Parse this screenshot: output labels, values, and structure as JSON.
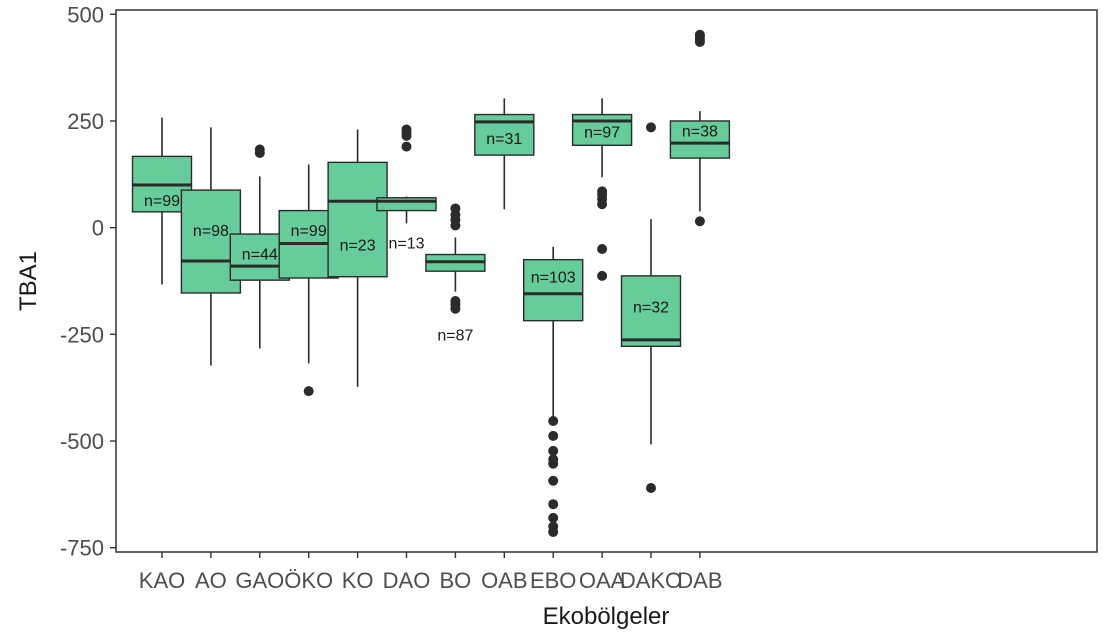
{
  "chart_data": {
    "type": "boxplot",
    "title": "",
    "xlabel": "Ekobölgeler",
    "ylabel": "TBA1",
    "ylim": [
      -760,
      510
    ],
    "yticks": [
      500,
      250,
      0,
      -250,
      -500,
      -750
    ],
    "ytick_labels": [
      "500",
      "250",
      "0",
      "-250",
      "-500",
      "-750"
    ],
    "grid": false,
    "legend": "none",
    "box_color": "#66cc99",
    "line_color": "#2b2b2b",
    "categories": [
      "KAO",
      "AO",
      "GAO",
      "ÖKO",
      "KO",
      "DAO",
      "BO",
      "OAB",
      "EBO",
      "OAA",
      "DAKO",
      "DAB"
    ],
    "boxes": [
      {
        "q1": 37,
        "median": 100,
        "q3": 167,
        "whisker_low": -133,
        "whisker_high": 258,
        "outliers": [],
        "n_label": "n=99",
        "n_label_y": 65
      },
      {
        "q1": -153,
        "median": -78,
        "q3": 88,
        "whisker_low": -323,
        "whisker_high": 235,
        "outliers": [],
        "n_label": "n=98",
        "n_label_y": -5
      },
      {
        "q1": -123,
        "median": -90,
        "q3": -15,
        "whisker_low": -283,
        "whisker_high": 120,
        "outliers": [
          175,
          183
        ],
        "n_label": "n=44",
        "n_label_y": -60
      },
      {
        "q1": -118,
        "median": -37,
        "q3": 40,
        "whisker_low": -318,
        "whisker_high": 148,
        "outliers": [
          -383
        ],
        "n_label": "n=99",
        "n_label_y": -5
      },
      {
        "q1": -115,
        "median": 62,
        "q3": 153,
        "whisker_low": -373,
        "whisker_high": 230,
        "outliers": [],
        "n_label": "n=23",
        "n_label_y": -40
      },
      {
        "q1": 40,
        "median": 62,
        "q3": 70,
        "whisker_low": 10,
        "whisker_high": 73,
        "outliers": [
          190,
          215,
          222,
          230
        ],
        "n_label": "n=13",
        "n_label_y": -35
      },
      {
        "q1": -102,
        "median": -80,
        "q3": -63,
        "whisker_low": -150,
        "whisker_high": -23,
        "outliers": [
          -190,
          -180,
          -172,
          5,
          18,
          30,
          45
        ],
        "n_label": "n=87",
        "n_label_y": -250
      },
      {
        "q1": 170,
        "median": 248,
        "q3": 265,
        "whisker_low": 43,
        "whisker_high": 303,
        "outliers": [],
        "n_label": "n=31",
        "n_label_y": 210
      },
      {
        "q1": -218,
        "median": -155,
        "q3": -75,
        "whisker_low": -448,
        "whisker_high": -45,
        "outliers": [
          -453,
          -488,
          -523,
          -543,
          -553,
          -593,
          -648,
          -680,
          -700,
          -713
        ],
        "n_label": "n=103",
        "n_label_y": -115
      },
      {
        "q1": 193,
        "median": 250,
        "q3": 265,
        "whisker_low": 118,
        "whisker_high": 303,
        "outliers": [
          -113,
          -50,
          55,
          67,
          78,
          85
        ],
        "n_label": "n=97",
        "n_label_y": 225
      },
      {
        "q1": -278,
        "median": -263,
        "q3": -113,
        "whisker_low": -508,
        "whisker_high": 20,
        "outliers": [
          -610,
          235
        ],
        "n_label": "n=32",
        "n_label_y": -185
      },
      {
        "q1": 163,
        "median": 198,
        "q3": 250,
        "whisker_low": 38,
        "whisker_high": 273,
        "outliers": [
          15,
          435,
          440,
          447,
          452
        ],
        "n_label": "n=38",
        "n_label_y": 228
      }
    ]
  }
}
